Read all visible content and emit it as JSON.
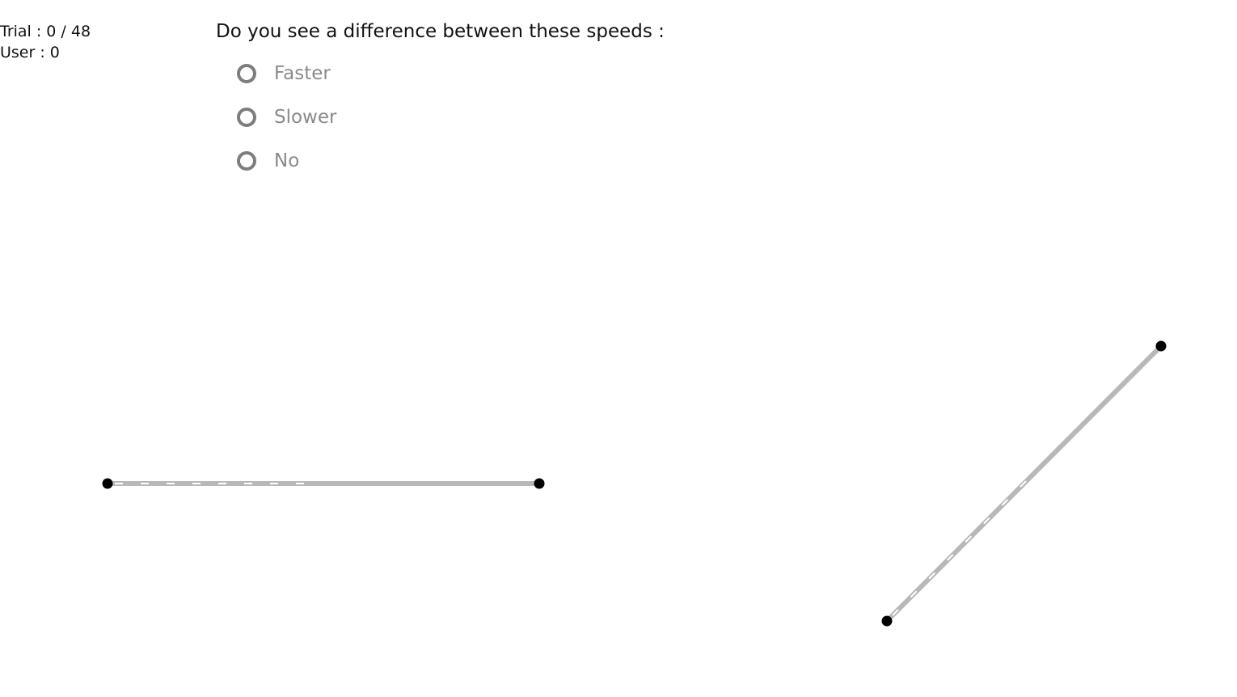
{
  "status": {
    "trial_text": "Trial : 0 / 48",
    "user_text": "User : 0"
  },
  "question": {
    "text": "Do you see a difference between these speeds :"
  },
  "options": [
    {
      "label": "Faster",
      "selected": false
    },
    {
      "label": "Slower",
      "selected": false
    },
    {
      "label": "No",
      "selected": false
    }
  ],
  "colors": {
    "track": "#b8b8b8",
    "dash": "#ffffff",
    "endpoint": "#000000",
    "radio_border": "#7d7d7d",
    "option_text": "#8a8a8a"
  }
}
